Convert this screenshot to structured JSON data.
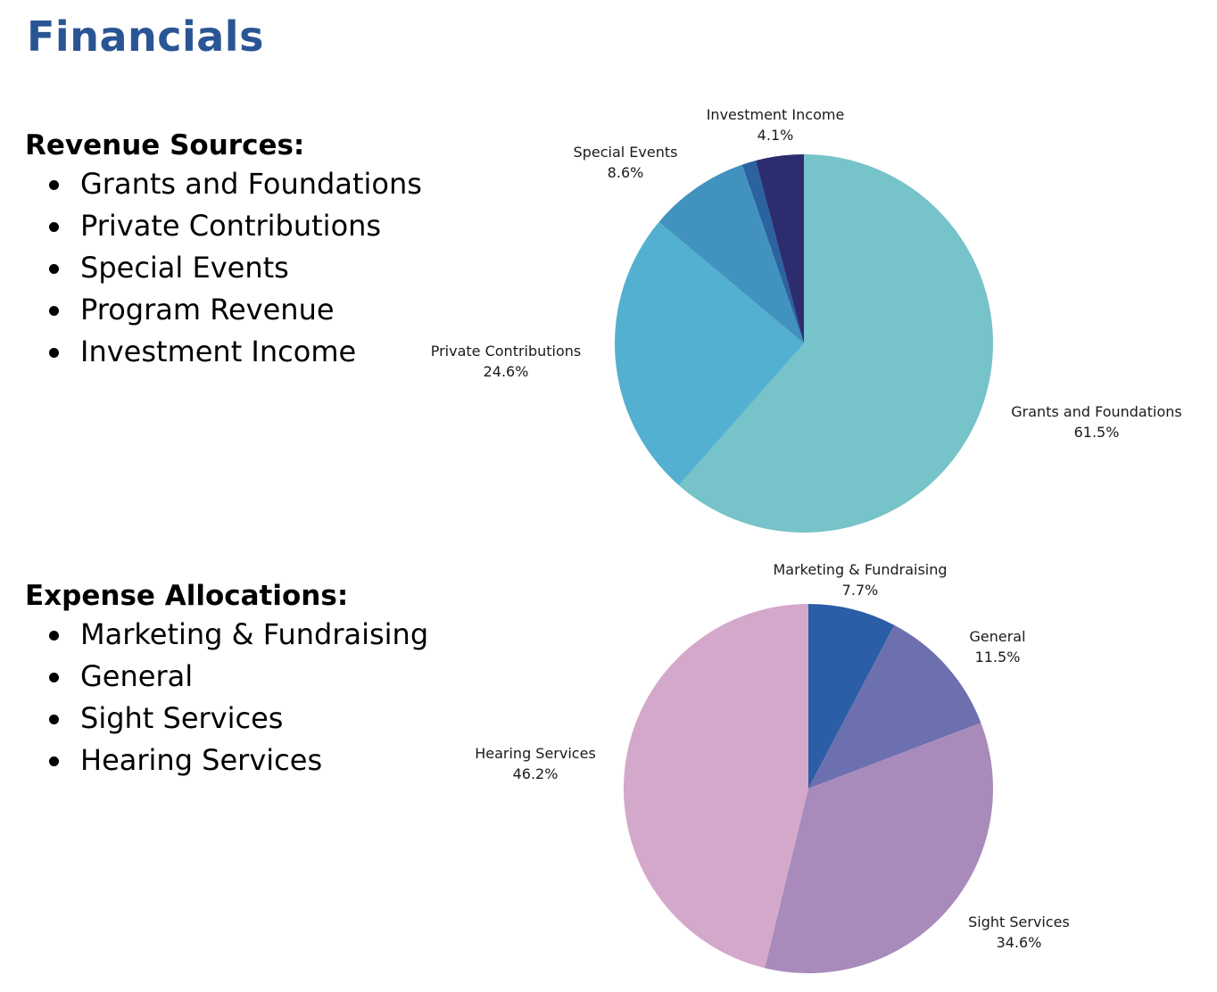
{
  "page": {
    "title": "Financials"
  },
  "revenue": {
    "heading": "Revenue Sources:",
    "items": [
      "Grants and Foundations",
      "Private Contributions",
      "Special Events",
      "Program Revenue",
      "Investment Income"
    ]
  },
  "expenses": {
    "heading": "Expense Allocations:",
    "items": [
      "Marketing & Fundraising",
      "General",
      "Sight Services",
      "Hearing Services"
    ]
  },
  "chart_data": [
    {
      "type": "pie",
      "title": "Revenue Sources",
      "start": "top",
      "direction": "clockwise",
      "slices": [
        {
          "label": "Grants and Foundations",
          "value": 61.5,
          "display": "61.5%",
          "color": "#76c3c9",
          "show_label": true
        },
        {
          "label": "Private Contributions",
          "value": 24.6,
          "display": "24.6%",
          "color": "#53b0d0",
          "show_label": true
        },
        {
          "label": "Special Events",
          "value": 8.6,
          "display": "8.6%",
          "color": "#4292bf",
          "show_label": true
        },
        {
          "label": "Program Revenue",
          "value": 1.2,
          "display": "",
          "color": "#2b62a0",
          "show_label": false
        },
        {
          "label": "Investment Income",
          "value": 4.1,
          "display": "4.1%",
          "color": "#2c2d6e",
          "show_label": true
        }
      ]
    },
    {
      "type": "pie",
      "title": "Expense Allocations",
      "start": "top",
      "direction": "clockwise",
      "slices": [
        {
          "label": "Marketing & Fundraising",
          "value": 7.7,
          "display": "7.7%",
          "color": "#2b5ea6",
          "show_label": true
        },
        {
          "label": "General",
          "value": 11.5,
          "display": "11.5%",
          "color": "#6c70ae",
          "show_label": true
        },
        {
          "label": "Sight Services",
          "value": 34.6,
          "display": "34.6%",
          "color": "#a88bbb",
          "show_label": true
        },
        {
          "label": "Hearing Services",
          "value": 46.2,
          "display": "46.2%",
          "color": "#d4a8cb",
          "show_label": true
        }
      ]
    }
  ]
}
